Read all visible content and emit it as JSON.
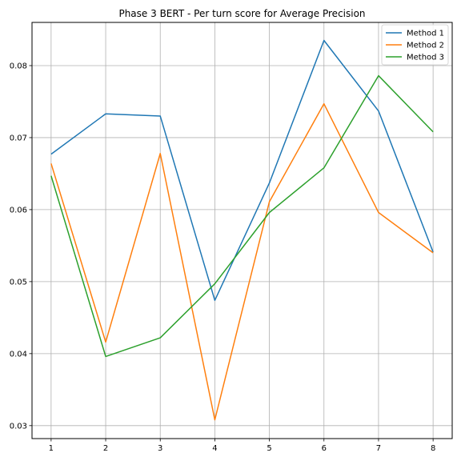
{
  "chart_data": {
    "type": "line",
    "title": "Phase 3 BERT - Per turn score for Average Precision",
    "xlabel": "",
    "ylabel": "",
    "x": [
      1,
      2,
      3,
      4,
      5,
      6,
      7,
      8
    ],
    "xlim": [
      0.65,
      8.35
    ],
    "ylim": [
      0.0282,
      0.086
    ],
    "xticks": [
      1,
      2,
      3,
      4,
      5,
      6,
      7,
      8
    ],
    "yticks": [
      0.03,
      0.04,
      0.05,
      0.06,
      0.07,
      0.08
    ],
    "ytick_labels": [
      "0.03",
      "0.04",
      "0.05",
      "0.06",
      "0.07",
      "0.08"
    ],
    "grid": true,
    "legend_position": "top-right",
    "series": [
      {
        "name": "Method 1",
        "color": "#1f77b4",
        "values": [
          0.0677,
          0.0733,
          0.073,
          0.0474,
          0.0637,
          0.0835,
          0.0737,
          0.0541
        ]
      },
      {
        "name": "Method 2",
        "color": "#ff7f0e",
        "values": [
          0.0664,
          0.0416,
          0.0678,
          0.0308,
          0.0611,
          0.0747,
          0.0596,
          0.054
        ]
      },
      {
        "name": "Method 3",
        "color": "#2ca02c",
        "values": [
          0.0647,
          0.0396,
          0.0422,
          0.0497,
          0.0596,
          0.0658,
          0.0786,
          0.0708
        ]
      }
    ]
  }
}
